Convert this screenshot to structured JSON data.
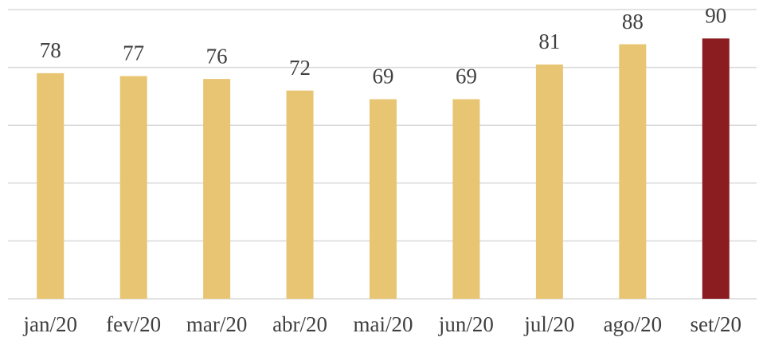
{
  "chart_data": {
    "type": "bar",
    "categories": [
      "jan/20",
      "fev/20",
      "mar/20",
      "abr/20",
      "mai/20",
      "jun/20",
      "jul/20",
      "ago/20",
      "set/20"
    ],
    "values": [
      78,
      77,
      76,
      72,
      69,
      69,
      81,
      88,
      90
    ],
    "colors": [
      "#e8c572",
      "#e8c572",
      "#e8c572",
      "#e8c572",
      "#e8c572",
      "#e8c572",
      "#e8c572",
      "#e8c572",
      "#8b1c1f"
    ],
    "ylim": [
      0,
      100
    ],
    "yticks": [
      0,
      20,
      40,
      60,
      80,
      100
    ],
    "grid": true
  }
}
